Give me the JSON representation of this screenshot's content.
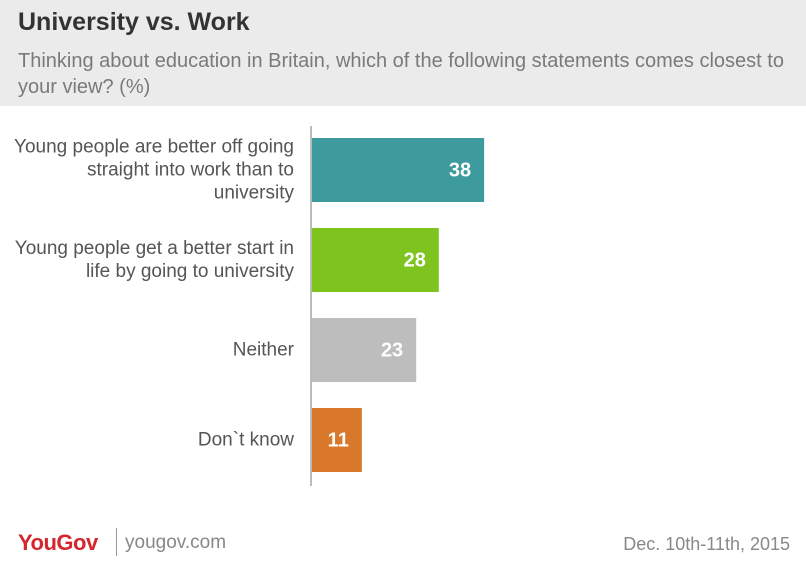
{
  "chart_data": {
    "type": "bar",
    "orientation": "horizontal",
    "title": "University vs. Work",
    "subtitle": "Thinking about education in Britain, which of the following statements comes closest to your view? (%)",
    "categories": [
      "Young people are better off going straight into work than to university",
      "Young people get a better start in life by going to university",
      "Neither",
      "Don`t know"
    ],
    "values": [
      38,
      28,
      23,
      11
    ],
    "colors": [
      "#3e9b9d",
      "#7fc41e",
      "#bdbdbd",
      "#d9772b"
    ]
  },
  "footer": {
    "logo": "YouGov",
    "site": "yougov.com",
    "date": "Dec. 10th-11th, 2015"
  }
}
